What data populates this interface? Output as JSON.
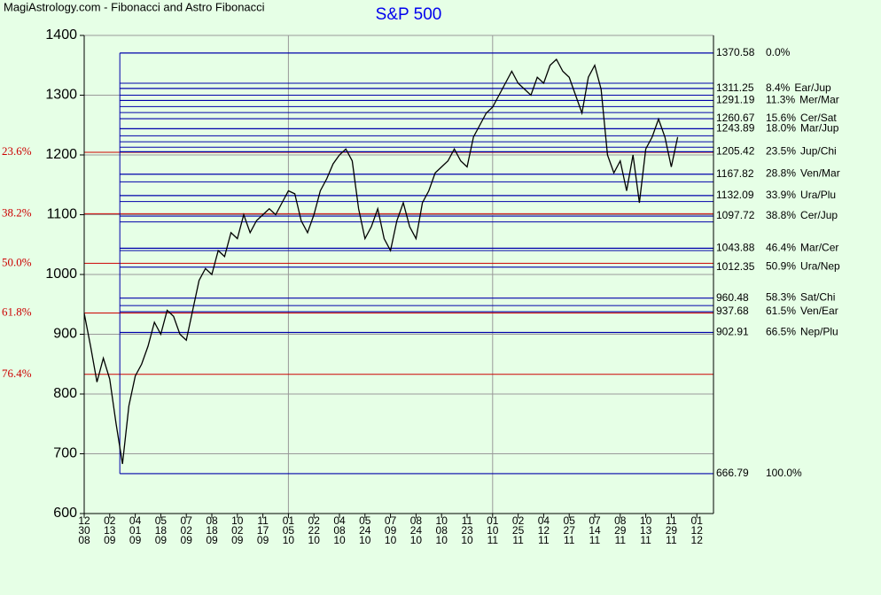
{
  "chart_data": {
    "type": "line",
    "header": "MagiAstrology.com - Fibonacci and Astro Fibonacci",
    "title": "S&P 500",
    "ylim": [
      600,
      1400
    ],
    "yticks": [
      600,
      700,
      800,
      900,
      1000,
      1100,
      1200,
      1300,
      1400
    ],
    "grid": true,
    "xticks": [
      [
        "12",
        "30",
        "08"
      ],
      [
        "02",
        "13",
        "09"
      ],
      [
        "04",
        "01",
        "09"
      ],
      [
        "05",
        "18",
        "09"
      ],
      [
        "07",
        "02",
        "09"
      ],
      [
        "08",
        "18",
        "09"
      ],
      [
        "10",
        "02",
        "09"
      ],
      [
        "11",
        "17",
        "09"
      ],
      [
        "01",
        "05",
        "10"
      ],
      [
        "02",
        "22",
        "10"
      ],
      [
        "04",
        "08",
        "10"
      ],
      [
        "05",
        "24",
        "10"
      ],
      [
        "07",
        "09",
        "10"
      ],
      [
        "08",
        "24",
        "10"
      ],
      [
        "10",
        "08",
        "10"
      ],
      [
        "11",
        "23",
        "10"
      ],
      [
        "01",
        "10",
        "11"
      ],
      [
        "02",
        "25",
        "11"
      ],
      [
        "04",
        "12",
        "11"
      ],
      [
        "05",
        "27",
        "11"
      ],
      [
        "07",
        "14",
        "11"
      ],
      [
        "08",
        "29",
        "11"
      ],
      [
        "10",
        "13",
        "11"
      ],
      [
        "11",
        "29",
        "11"
      ],
      [
        "01",
        "12",
        "12"
      ]
    ],
    "series": [
      {
        "name": "S&P 500",
        "color": "#000000",
        "values": [
          935,
          880,
          820,
          860,
          825,
          750,
          683,
          780,
          830,
          850,
          880,
          920,
          900,
          940,
          930,
          900,
          890,
          940,
          990,
          1010,
          1000,
          1040,
          1030,
          1070,
          1060,
          1100,
          1070,
          1090,
          1100,
          1110,
          1100,
          1120,
          1140,
          1135,
          1090,
          1070,
          1100,
          1140,
          1160,
          1185,
          1200,
          1210,
          1190,
          1110,
          1060,
          1080,
          1110,
          1060,
          1040,
          1090,
          1120,
          1080,
          1060,
          1120,
          1140,
          1170,
          1180,
          1190,
          1210,
          1190,
          1180,
          1230,
          1250,
          1270,
          1280,
          1300,
          1320,
          1340,
          1320,
          1310,
          1300,
          1330,
          1320,
          1350,
          1360,
          1340,
          1330,
          1300,
          1270,
          1330,
          1350,
          1310,
          1200,
          1170,
          1190,
          1140,
          1200,
          1120,
          1210,
          1230,
          1260,
          1230,
          1180,
          1230
        ]
      }
    ],
    "astro_levels": [
      {
        "value": 1370.58,
        "pct": "0.0%"
      },
      {
        "value": 1311.25,
        "pct": "8.4%",
        "name": "Ear/Jup"
      },
      {
        "value": 1291.19,
        "pct": "11.3%",
        "name": "Mer/Mar"
      },
      {
        "value": 1260.67,
        "pct": "15.6%",
        "name": "Cer/Sat"
      },
      {
        "value": 1243.89,
        "pct": "18.0%",
        "name": "Mar/Jup"
      },
      {
        "value": 1205.42,
        "pct": "23.5%",
        "name": "Jup/Chi"
      },
      {
        "value": 1167.82,
        "pct": "28.8%",
        "name": "Ven/Mar"
      },
      {
        "value": 1132.09,
        "pct": "33.9%",
        "name": "Ura/Plu"
      },
      {
        "value": 1097.72,
        "pct": "38.8%",
        "name": "Cer/Jup"
      },
      {
        "value": 1043.88,
        "pct": "46.4%",
        "name": "Mar/Cer"
      },
      {
        "value": 1012.35,
        "pct": "50.9%",
        "name": "Ura/Nep"
      },
      {
        "value": 960.48,
        "pct": "58.3%",
        "name": "Sat/Chi"
      },
      {
        "value": 937.68,
        "pct": "61.5%",
        "name": "Ven/Ear"
      },
      {
        "value": 902.91,
        "pct": "66.5%",
        "name": "Nep/Plu"
      },
      {
        "value": 666.79,
        "pct": "100.0%"
      }
    ],
    "minor_levels": [
      1320,
      1300,
      1281,
      1271,
      1232,
      1222,
      1213,
      1155,
      1122,
      1088,
      1040,
      948
    ],
    "fib_levels": [
      {
        "value": 1204.5,
        "label": "23.6%"
      },
      {
        "value": 1101.7,
        "label": "38.2%"
      },
      {
        "value": 1018.7,
        "label": "50.0%"
      },
      {
        "value": 935.6,
        "label": "61.8%"
      },
      {
        "value": 832.9,
        "label": "76.4%"
      }
    ],
    "level_color": "#0000aa",
    "fib_color": "#cc0000"
  }
}
